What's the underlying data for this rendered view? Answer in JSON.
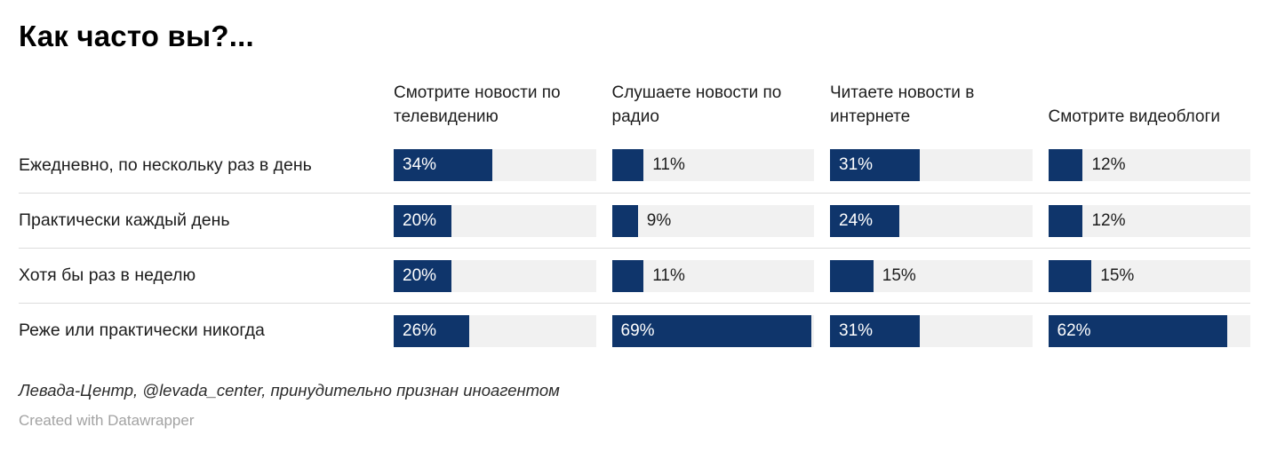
{
  "title": "Как часто вы?...",
  "chart_data": {
    "type": "bar",
    "orientation": "horizontal",
    "axis_max": 70,
    "bar_color": "#0f356b",
    "track_color": "#f1f1f1",
    "inside_label_threshold": 20,
    "columns": [
      "Смотрите новости по телевидению",
      "Слушаете новости по радио",
      "Читаете новости в интернете",
      "Смотрите видеоблоги"
    ],
    "rows": [
      "Ежедневно, по нескольку раз в день",
      "Практически каждый день",
      "Хотя бы раз в неделю",
      "Реже или практически никогда"
    ],
    "values": [
      [
        34,
        11,
        31,
        12
      ],
      [
        20,
        9,
        24,
        12
      ],
      [
        20,
        11,
        15,
        15
      ],
      [
        26,
        69,
        31,
        62
      ]
    ],
    "value_suffix": "%"
  },
  "footer": {
    "source": "Левада-Центр, @levada_center, принудительно признан иноагентом",
    "credit": "Created with Datawrapper"
  }
}
